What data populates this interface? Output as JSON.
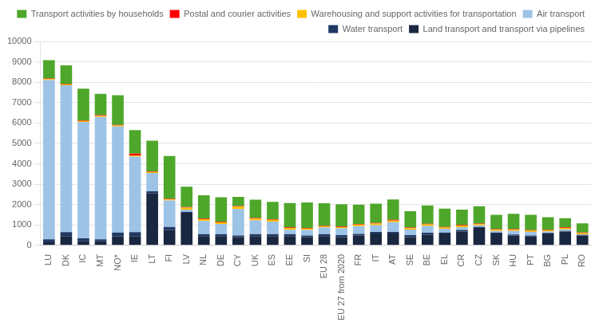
{
  "chart_data": {
    "type": "bar",
    "stacked": true,
    "categories": [
      "LU",
      "DK",
      "IC",
      "MT",
      "NO*",
      "IE",
      "LT",
      "FI",
      "LV",
      "NL",
      "DE",
      "CY",
      "UK",
      "ES",
      "EE",
      "SI",
      "EU 28",
      "EU 27 from 2020",
      "FR",
      "IT",
      "AT",
      "SE",
      "BE",
      "EL",
      "CR",
      "CZ",
      "SK",
      "HU",
      "PT",
      "BG",
      "PL",
      "RO"
    ],
    "series": [
      {
        "name": "Land transport and transport via pipelines",
        "color": "#1a2740",
        "values": [
          150,
          450,
          200,
          200,
          430,
          450,
          2550,
          750,
          1600,
          450,
          450,
          400,
          450,
          450,
          450,
          400,
          450,
          400,
          480,
          580,
          580,
          400,
          520,
          580,
          680,
          850,
          580,
          480,
          430,
          580,
          680,
          480
        ]
      },
      {
        "name": "Water transport",
        "color": "#203864",
        "values": [
          150,
          200,
          150,
          100,
          200,
          200,
          100,
          150,
          50,
          100,
          100,
          80,
          100,
          100,
          100,
          80,
          100,
          100,
          80,
          80,
          80,
          100,
          100,
          50,
          80,
          50,
          50,
          50,
          50,
          30,
          30,
          30
        ]
      },
      {
        "name": "Air transport",
        "color": "#9dc3e6",
        "values": [
          7800,
          7200,
          5700,
          6000,
          5200,
          3700,
          900,
          1300,
          100,
          650,
          500,
          1300,
          680,
          620,
          220,
          280,
          330,
          330,
          380,
          330,
          480,
          280,
          330,
          180,
          130,
          80,
          80,
          180,
          180,
          80,
          80,
          30
        ]
      },
      {
        "name": "Warehousing and support activities for transportation",
        "color": "#ffc000",
        "values": [
          50,
          50,
          50,
          50,
          50,
          50,
          50,
          50,
          100,
          80,
          80,
          120,
          80,
          80,
          80,
          60,
          60,
          60,
          80,
          80,
          80,
          60,
          80,
          60,
          80,
          60,
          60,
          60,
          60,
          60,
          60,
          60
        ]
      },
      {
        "name": "Postal and courier activities",
        "color": "#ff0000",
        "values": [
          30,
          30,
          30,
          30,
          30,
          100,
          30,
          30,
          30,
          30,
          30,
          30,
          30,
          30,
          30,
          30,
          30,
          30,
          30,
          30,
          30,
          30,
          30,
          30,
          30,
          30,
          30,
          30,
          30,
          30,
          30,
          30
        ]
      },
      {
        "name": "Transport activities by households",
        "color": "#4ea72a",
        "values": [
          900,
          900,
          1550,
          1050,
          1450,
          1150,
          1500,
          2100,
          1000,
          1150,
          1200,
          450,
          900,
          850,
          1200,
          1250,
          1100,
          1100,
          950,
          950,
          1000,
          800,
          900,
          900,
          750,
          850,
          700,
          750,
          750,
          600,
          450,
          450
        ]
      }
    ],
    "ylim": [
      0,
      10000
    ],
    "yticks": [
      0,
      1000,
      2000,
      3000,
      4000,
      5000,
      6000,
      7000,
      8000,
      9000,
      10000
    ],
    "grid": true,
    "legend": "upper right"
  }
}
